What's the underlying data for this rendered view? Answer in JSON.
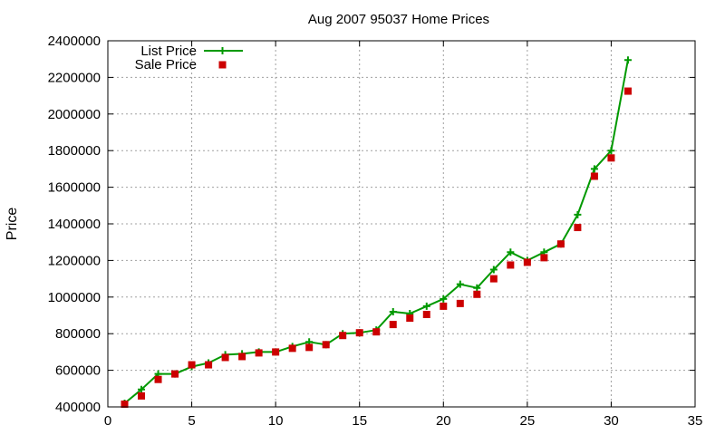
{
  "chart_data": {
    "type": "line",
    "title": "Aug 2007 95037 Home Prices",
    "xlabel": "",
    "ylabel": "Price",
    "xlim": [
      0,
      35
    ],
    "ylim": [
      400000,
      2400000
    ],
    "x_ticks": [
      "0",
      "5",
      "10",
      "15",
      "20",
      "25",
      "30",
      "35"
    ],
    "y_ticks": [
      "400000",
      "600000",
      "800000",
      "1000000",
      "1200000",
      "1400000",
      "1600000",
      "1800000",
      "2000000",
      "2200000",
      "2400000"
    ],
    "grid": true,
    "legend_position": "top-left",
    "x": [
      1,
      2,
      3,
      4,
      5,
      6,
      7,
      8,
      9,
      10,
      11,
      12,
      13,
      14,
      15,
      16,
      17,
      18,
      19,
      20,
      21,
      22,
      23,
      24,
      25,
      26,
      27,
      28,
      29,
      30,
      31
    ],
    "series": [
      {
        "name": "List Price",
        "style": "line-with-plus",
        "color": "#009900",
        "values": [
          420000,
          495000,
          580000,
          580000,
          620000,
          640000,
          685000,
          690000,
          700000,
          700000,
          730000,
          755000,
          740000,
          800000,
          805000,
          820000,
          920000,
          910000,
          950000,
          990000,
          1070000,
          1050000,
          1150000,
          1245000,
          1200000,
          1245000,
          1290000,
          1450000,
          1700000,
          1800000,
          2295000
        ]
      },
      {
        "name": "Sale Price",
        "style": "square-points",
        "color": "#cc0000",
        "values": [
          415000,
          460000,
          550000,
          580000,
          630000,
          630000,
          670000,
          675000,
          695000,
          700000,
          720000,
          725000,
          740000,
          790000,
          805000,
          810000,
          850000,
          885000,
          905000,
          950000,
          965000,
          1015000,
          1100000,
          1175000,
          1190000,
          1215000,
          1290000,
          1380000,
          1660000,
          1760000,
          2125000
        ]
      }
    ]
  }
}
